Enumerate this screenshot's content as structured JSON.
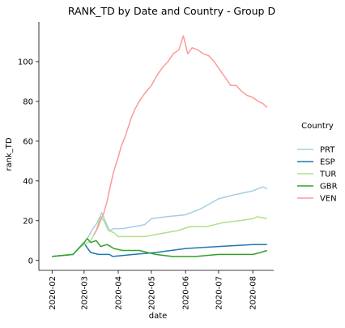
{
  "chart_data": {
    "type": "line",
    "title": "RANK_TD by Date and Country - Group D",
    "xlabel": "date",
    "ylabel": "rank_TD",
    "x_range": [
      "2020-01-20",
      "2020-08-20"
    ],
    "ylim": [
      -5,
      120
    ],
    "x_ticks": [
      "2020-02",
      "2020-03",
      "2020-04",
      "2020-05",
      "2020-06",
      "2020-07",
      "2020-08"
    ],
    "y_ticks": [
      0,
      20,
      40,
      60,
      80,
      100
    ],
    "legend": {
      "title": "Country",
      "placement": "right"
    },
    "grid": false,
    "series": [
      {
        "name": "PRT",
        "color": "#a6cee3",
        "points": [
          [
            "2020-02-01",
            2
          ],
          [
            "2020-02-20",
            3
          ],
          [
            "2020-02-25",
            6
          ],
          [
            "2020-03-01",
            9
          ],
          [
            "2020-03-05",
            12
          ],
          [
            "2020-03-09",
            16
          ],
          [
            "2020-03-13",
            19
          ],
          [
            "2020-03-17",
            24
          ],
          [
            "2020-03-20",
            20
          ],
          [
            "2020-03-24",
            15
          ],
          [
            "2020-03-28",
            16
          ],
          [
            "2020-04-05",
            16
          ],
          [
            "2020-04-15",
            17
          ],
          [
            "2020-04-25",
            18
          ],
          [
            "2020-05-01",
            21
          ],
          [
            "2020-05-15",
            22
          ],
          [
            "2020-06-01",
            23
          ],
          [
            "2020-06-15",
            26
          ],
          [
            "2020-07-01",
            31
          ],
          [
            "2020-07-15",
            33
          ],
          [
            "2020-08-01",
            35
          ],
          [
            "2020-08-10",
            37
          ],
          [
            "2020-08-14",
            36
          ]
        ]
      },
      {
        "name": "ESP",
        "color": "#1f78b4",
        "points": [
          [
            "2020-02-01",
            2
          ],
          [
            "2020-02-20",
            3
          ],
          [
            "2020-02-25",
            6
          ],
          [
            "2020-03-01",
            9
          ],
          [
            "2020-03-03",
            7
          ],
          [
            "2020-03-07",
            4
          ],
          [
            "2020-03-14",
            3
          ],
          [
            "2020-03-24",
            3
          ],
          [
            "2020-03-27",
            2
          ],
          [
            "2020-04-15",
            3
          ],
          [
            "2020-05-05",
            4
          ],
          [
            "2020-06-01",
            6
          ],
          [
            "2020-07-01",
            7
          ],
          [
            "2020-08-01",
            8
          ],
          [
            "2020-08-14",
            8
          ]
        ]
      },
      {
        "name": "TUR",
        "color": "#b2df8a",
        "points": [
          [
            "2020-02-01",
            2
          ],
          [
            "2020-02-20",
            3
          ],
          [
            "2020-02-25",
            6
          ],
          [
            "2020-03-01",
            8
          ],
          [
            "2020-03-07",
            10
          ],
          [
            "2020-03-12",
            15
          ],
          [
            "2020-03-16",
            22
          ],
          [
            "2020-03-19",
            20
          ],
          [
            "2020-03-23",
            15
          ],
          [
            "2020-03-28",
            14
          ],
          [
            "2020-04-01",
            12
          ],
          [
            "2020-04-10",
            12
          ],
          [
            "2020-04-25",
            12
          ],
          [
            "2020-05-05",
            13
          ],
          [
            "2020-05-25",
            15
          ],
          [
            "2020-06-05",
            17
          ],
          [
            "2020-06-20",
            17
          ],
          [
            "2020-07-05",
            19
          ],
          [
            "2020-07-20",
            20
          ],
          [
            "2020-08-01",
            21
          ],
          [
            "2020-08-05",
            22
          ],
          [
            "2020-08-14",
            21
          ]
        ]
      },
      {
        "name": "GBR",
        "color": "#33a02c",
        "points": [
          [
            "2020-02-01",
            2
          ],
          [
            "2020-02-20",
            3
          ],
          [
            "2020-02-25",
            6
          ],
          [
            "2020-03-01",
            9
          ],
          [
            "2020-03-04",
            11
          ],
          [
            "2020-03-07",
            9
          ],
          [
            "2020-03-12",
            10
          ],
          [
            "2020-03-16",
            7
          ],
          [
            "2020-03-22",
            8
          ],
          [
            "2020-03-28",
            6
          ],
          [
            "2020-04-05",
            5
          ],
          [
            "2020-04-20",
            5
          ],
          [
            "2020-05-05",
            3
          ],
          [
            "2020-05-20",
            2
          ],
          [
            "2020-06-10",
            2
          ],
          [
            "2020-07-01",
            3
          ],
          [
            "2020-07-20",
            3
          ],
          [
            "2020-08-01",
            3
          ],
          [
            "2020-08-08",
            4
          ],
          [
            "2020-08-14",
            5
          ]
        ]
      },
      {
        "name": "VEN",
        "color": "#fb9a99",
        "points": [
          [
            "2020-03-10",
            13
          ],
          [
            "2020-03-13",
            16
          ],
          [
            "2020-03-16",
            20
          ],
          [
            "2020-03-19",
            24
          ],
          [
            "2020-03-22",
            30
          ],
          [
            "2020-03-25",
            38
          ],
          [
            "2020-03-28",
            45
          ],
          [
            "2020-04-01",
            52
          ],
          [
            "2020-04-04",
            58
          ],
          [
            "2020-04-07",
            62
          ],
          [
            "2020-04-10",
            67
          ],
          [
            "2020-04-13",
            72
          ],
          [
            "2020-04-16",
            76
          ],
          [
            "2020-04-20",
            80
          ],
          [
            "2020-04-25",
            84
          ],
          [
            "2020-05-01",
            88
          ],
          [
            "2020-05-06",
            93
          ],
          [
            "2020-05-11",
            97
          ],
          [
            "2020-05-16",
            100
          ],
          [
            "2020-05-21",
            104
          ],
          [
            "2020-05-26",
            106
          ],
          [
            "2020-05-30",
            113
          ],
          [
            "2020-06-03",
            104
          ],
          [
            "2020-06-07",
            107
          ],
          [
            "2020-06-12",
            106
          ],
          [
            "2020-06-17",
            104
          ],
          [
            "2020-06-22",
            103
          ],
          [
            "2020-06-27",
            100
          ],
          [
            "2020-07-02",
            96
          ],
          [
            "2020-07-07",
            92
          ],
          [
            "2020-07-12",
            88
          ],
          [
            "2020-07-17",
            88
          ],
          [
            "2020-07-22",
            85
          ],
          [
            "2020-07-27",
            83
          ],
          [
            "2020-08-01",
            82
          ],
          [
            "2020-08-06",
            80
          ],
          [
            "2020-08-10",
            79
          ],
          [
            "2020-08-14",
            77
          ]
        ]
      }
    ]
  }
}
